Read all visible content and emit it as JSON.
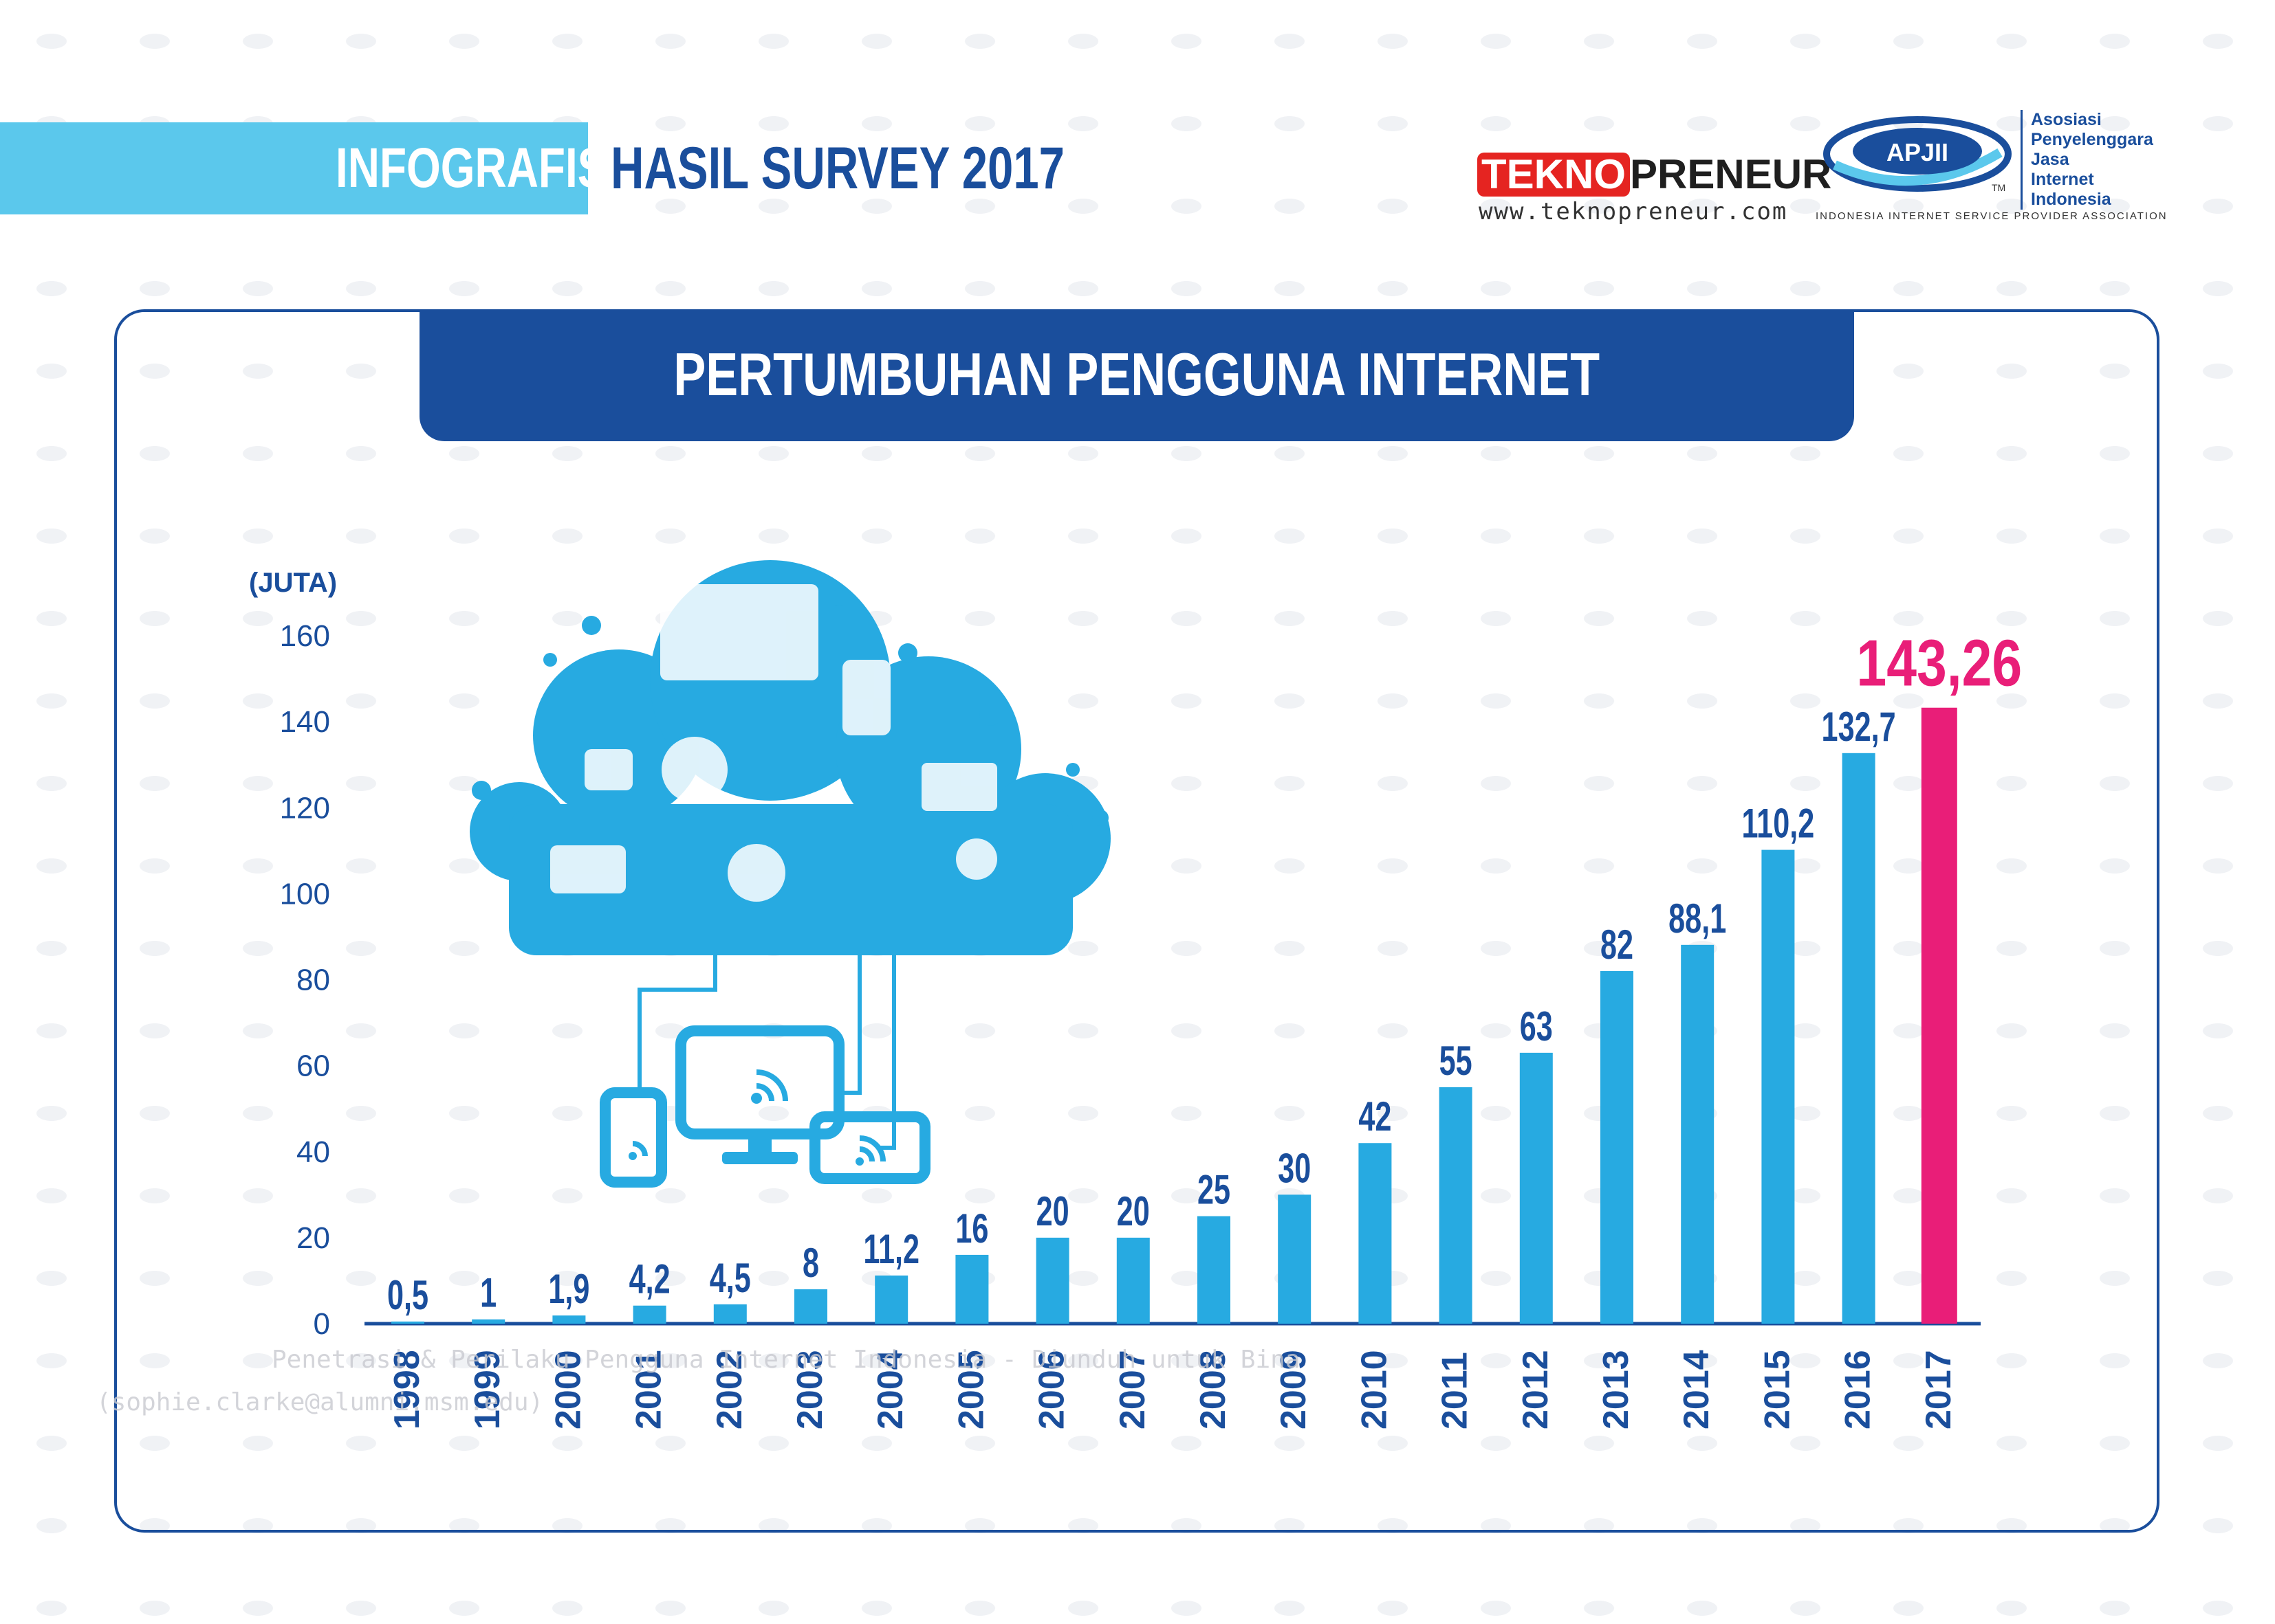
{
  "header": {
    "infografis": "INFOGRAFIS",
    "survey": "HASIL SURVEY 2017"
  },
  "teknopreneur": {
    "box": "TEKNO",
    "rest": "PRENEUR",
    "url": "www.teknopreneur.com"
  },
  "apjii": {
    "badge": "APJII",
    "tm": "TM",
    "lines": [
      "Asosiasi",
      "Penyelenggara",
      "Jasa",
      "Internet",
      "Indonesia"
    ],
    "foot": "INDONESIA INTERNET SERVICE PROVIDER ASSOCIATION"
  },
  "watermark": {
    "line1": "Penetrasi & Perilaku Pengguna Internet Indonesia - Diunduh untuk Bina",
    "line2": "(sophie.clarke@alumni.msm.edu)"
  },
  "colors": {
    "bar": "#27aae1",
    "highlight": "#e91e78",
    "navy": "#1a4e9c",
    "banner": "#5bc8ec"
  },
  "chart_data": {
    "type": "bar",
    "title": "PERTUMBUHAN PENGGUNA INTERNET",
    "ylabel": "(JUTA)",
    "ylim": [
      0,
      160
    ],
    "yticks": [
      0,
      20,
      40,
      60,
      80,
      100,
      120,
      140,
      160
    ],
    "grid": false,
    "categories": [
      "1998",
      "1999",
      "2000",
      "2001",
      "2002",
      "2003",
      "2004",
      "2005",
      "2006",
      "2007",
      "2008",
      "2009",
      "2010",
      "2011",
      "2012",
      "2013",
      "2014",
      "2015",
      "2016",
      "2017"
    ],
    "values": [
      0.5,
      1,
      1.9,
      4.2,
      4.5,
      8,
      11.2,
      16,
      20,
      20,
      25,
      30,
      42,
      55,
      63,
      82,
      88.1,
      110.2,
      132.7,
      143.26
    ],
    "value_labels": [
      "0,5",
      "1",
      "1,9",
      "4,2",
      "4,5",
      "8",
      "11,2",
      "16",
      "20",
      "20",
      "25",
      "30",
      "42",
      "55",
      "63",
      "82",
      "88,1",
      "110,2",
      "132,7",
      "143,26"
    ],
    "highlight_index": 19
  }
}
